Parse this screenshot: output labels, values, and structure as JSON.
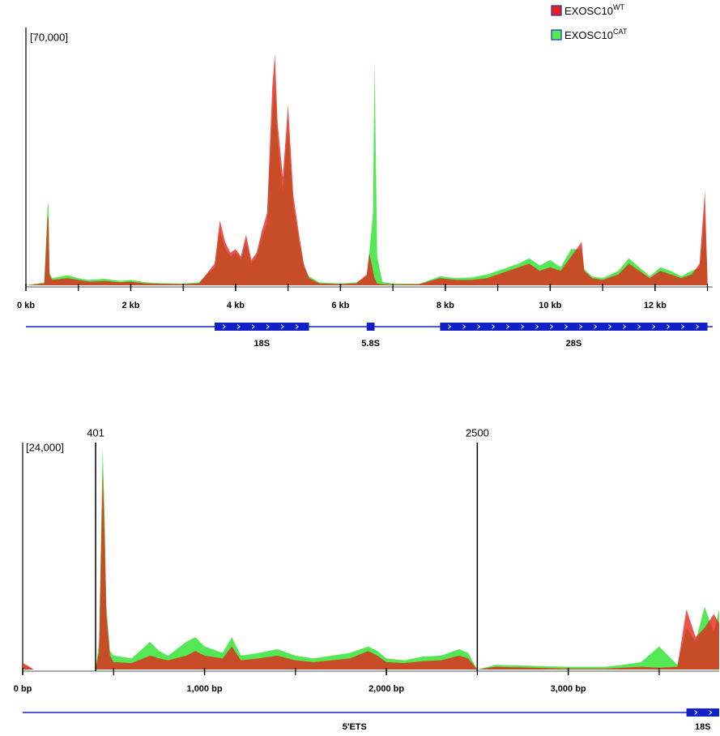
{
  "chart_data": [
    {
      "type": "area",
      "range_label": "[70,000]",
      "x": [
        0,
        0.35,
        0.41,
        0.43,
        0.45,
        0.5,
        0.8,
        1.0,
        1.2,
        1.5,
        1.8,
        2.0,
        2.3,
        2.6,
        3.0,
        3.3,
        3.6,
        3.7,
        3.8,
        3.9,
        4.0,
        4.1,
        4.2,
        4.3,
        4.4,
        4.5,
        4.6,
        4.7,
        4.75,
        4.8,
        4.9,
        5.0,
        5.1,
        5.2,
        5.3,
        5.4,
        5.6,
        6.0,
        6.3,
        6.5,
        6.55,
        6.62,
        6.65,
        6.7,
        6.8,
        7.0,
        7.5,
        7.9,
        8.2,
        8.5,
        8.8,
        9.0,
        9.2,
        9.4,
        9.6,
        9.8,
        10.0,
        10.2,
        10.4,
        10.6,
        10.65,
        10.8,
        11.0,
        11.3,
        11.5,
        11.7,
        11.9,
        12.1,
        12.3,
        12.5,
        12.7,
        12.85,
        12.95,
        13.0
      ],
      "series": [
        {
          "name": "EXOSC10",
          "superscript": "CAT",
          "color": "#55e855",
          "values": [
            0,
            800,
            21000,
            23000,
            3500,
            2000,
            2800,
            2000,
            1500,
            1800,
            1200,
            1500,
            800,
            600,
            500,
            800,
            5000,
            15000,
            10000,
            8000,
            9000,
            7000,
            12000,
            6000,
            8000,
            13000,
            17000,
            47000,
            55000,
            40000,
            26000,
            44000,
            22000,
            13000,
            5000,
            2500,
            800,
            500,
            800,
            2500,
            9000,
            20000,
            62000,
            8000,
            900,
            500,
            400,
            2500,
            2000,
            2200,
            3000,
            4000,
            5000,
            6000,
            7500,
            5500,
            7000,
            5000,
            10000,
            10000,
            4500,
            2500,
            2000,
            4000,
            7500,
            5000,
            2500,
            5000,
            4000,
            2500,
            4000,
            5000,
            20000,
            2000
          ]
        },
        {
          "name": "EXOSC10",
          "superscript": "WT",
          "color": "#e8201c",
          "values": [
            0,
            500,
            18000,
            19500,
            3000,
            1500,
            2000,
            1500,
            1000,
            1200,
            800,
            1000,
            500,
            400,
            300,
            500,
            6000,
            18000,
            12000,
            9000,
            10000,
            8000,
            14000,
            7000,
            9000,
            15000,
            20000,
            55000,
            64000,
            45000,
            30000,
            50000,
            25000,
            15000,
            6000,
            2000,
            500,
            300,
            500,
            3000,
            9000,
            4000,
            2000,
            500,
            300,
            200,
            300,
            2000,
            1500,
            1500,
            2000,
            3000,
            4000,
            5000,
            6000,
            4000,
            5000,
            4000,
            8000,
            12000,
            4000,
            2000,
            1500,
            3000,
            6000,
            4000,
            2000,
            4000,
            3000,
            2000,
            3000,
            6000,
            26000,
            2000
          ]
        }
      ],
      "xlim": [
        0,
        13.1
      ],
      "ylim": [
        0,
        70000
      ],
      "xticks": [
        {
          "value": 0,
          "label": "0 kb"
        },
        {
          "value": 2,
          "label": "2 kb"
        },
        {
          "value": 4,
          "label": "4 kb"
        },
        {
          "value": 6,
          "label": "6 kb"
        },
        {
          "value": 8,
          "label": "8 kb"
        },
        {
          "value": 10,
          "label": "10 kb"
        },
        {
          "value": 12,
          "label": "12 kb"
        }
      ],
      "minor_xticks": [
        1,
        3,
        5,
        7,
        9,
        11,
        13
      ],
      "features": [
        {
          "name": "18S",
          "start": 3.6,
          "end": 5.4,
          "thick": true
        },
        {
          "name": "5.8S",
          "start": 6.5,
          "end": 6.65,
          "thick": true
        },
        {
          "name": "28S",
          "start": 7.9,
          "end": 13.0,
          "thick": true
        }
      ],
      "feature_color": "#1020c8",
      "legend": "top-right"
    },
    {
      "type": "area",
      "range_label": "[24,000]",
      "x": [
        0,
        30,
        60,
        100,
        300,
        390,
        401,
        420,
        440,
        450,
        460,
        480,
        500,
        600,
        700,
        750,
        800,
        900,
        950,
        1000,
        1100,
        1150,
        1200,
        1300,
        1400,
        1500,
        1600,
        1700,
        1800,
        1900,
        1950,
        2000,
        2100,
        2200,
        2300,
        2400,
        2450,
        2500,
        2600,
        2800,
        3000,
        3200,
        3300,
        3400,
        3500,
        3600,
        3650,
        3700,
        3750,
        3800,
        3830
      ],
      "series": [
        {
          "color": "#55e855",
          "values": [
            400,
            300,
            0,
            0,
            0,
            0,
            0,
            3000,
            24000,
            17000,
            7000,
            2000,
            1500,
            1200,
            3000,
            2000,
            1500,
            3000,
            3500,
            2500,
            1800,
            3500,
            1500,
            1800,
            2200,
            1500,
            1200,
            1500,
            1800,
            2500,
            2000,
            1200,
            1000,
            1400,
            1500,
            2200,
            1800,
            0,
            500,
            400,
            300,
            300,
            500,
            800,
            2500,
            500,
            4500,
            3000,
            6800,
            4000,
            6500
          ]
        },
        {
          "color": "#e8201c",
          "values": [
            700,
            400,
            0,
            0,
            0,
            0,
            0,
            2000,
            21500,
            15000,
            6000,
            1500,
            800,
            700,
            1500,
            1200,
            1000,
            1500,
            2000,
            1500,
            1200,
            2500,
            1000,
            1200,
            1500,
            1000,
            800,
            1000,
            1200,
            2000,
            1500,
            800,
            700,
            900,
            1000,
            1500,
            1200,
            0,
            300,
            200,
            100,
            100,
            200,
            300,
            200,
            300,
            6500,
            3500,
            4500,
            6000,
            5000
          ]
        }
      ],
      "xlim": [
        0,
        3830
      ],
      "ylim": [
        0,
        24000
      ],
      "xticks": [
        {
          "value": 0,
          "label": "0 bp"
        },
        {
          "value": 1000,
          "label": "1,000 bp"
        },
        {
          "value": 2000,
          "label": "2,000 bp"
        },
        {
          "value": 3000,
          "label": "3,000 bp"
        }
      ],
      "minor_xticks": [
        500,
        1500,
        2500,
        3500
      ],
      "markers": [
        401,
        2500
      ],
      "features": [
        {
          "name": "5'ETS",
          "start": 0,
          "end": 3650,
          "thick": false
        },
        {
          "name": "18S",
          "start": 3650,
          "end": 3830,
          "thick": true
        }
      ],
      "feature_color": "#1020c8"
    }
  ]
}
